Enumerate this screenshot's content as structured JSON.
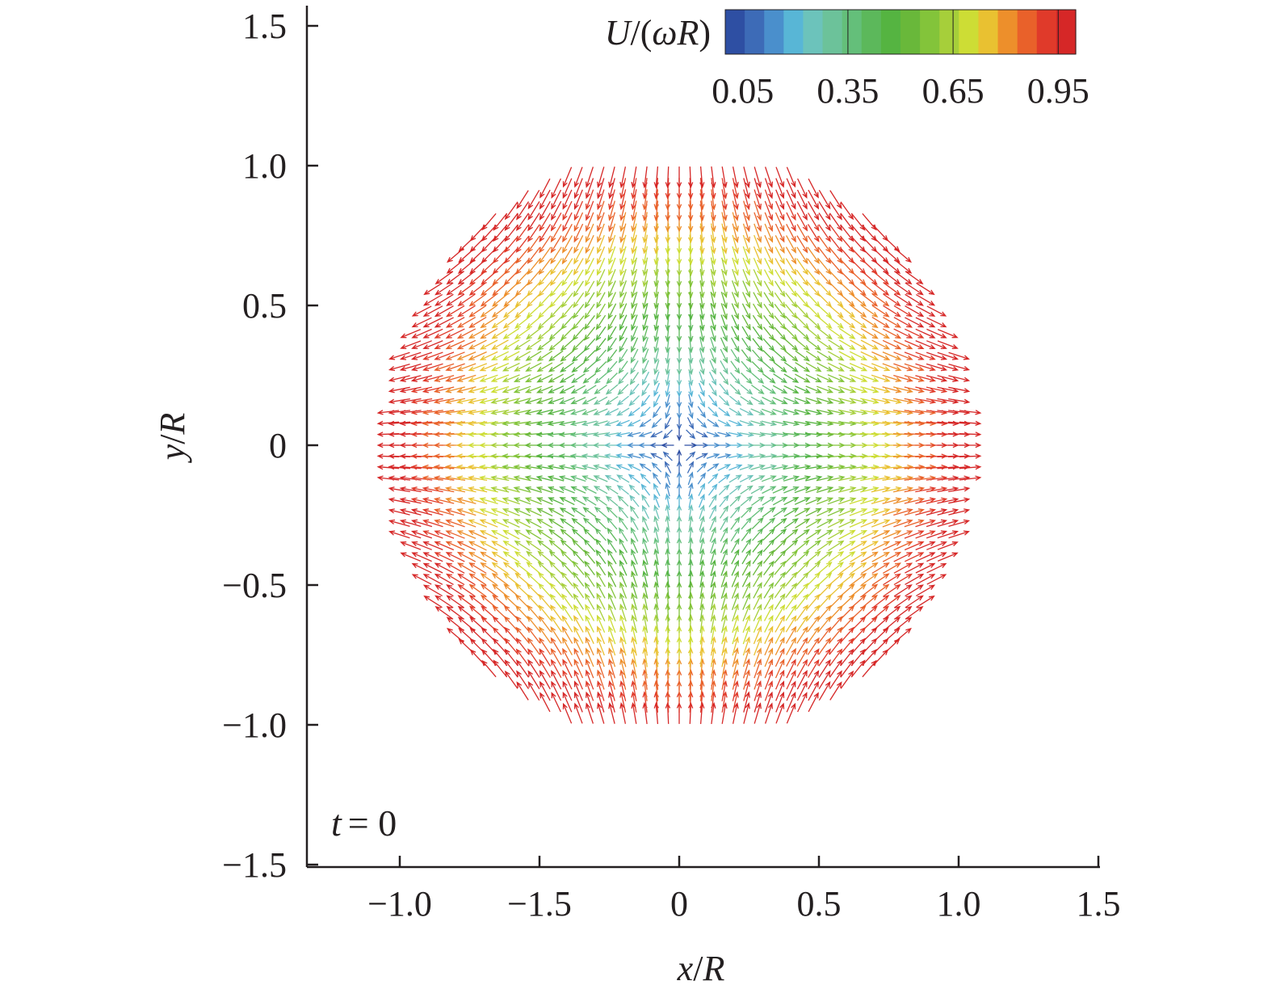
{
  "chart_data": {
    "type": "vector-field",
    "xlabel_var": "x",
    "xlabel_unit": "R",
    "ylabel_var": "y",
    "ylabel_unit": "R",
    "x_ticks": [
      "−1.0",
      "−1.5",
      "0",
      "0.5",
      "1.0",
      "1.5"
    ],
    "y_ticks": [
      "1.5",
      "1.0",
      "0.5",
      "0",
      "−0.5",
      "−1.0",
      "−1.5"
    ],
    "xlim": [
      -1.5,
      1.5
    ],
    "ylim": [
      -1.5,
      1.5
    ],
    "annotation_var": "t",
    "annotation_value": "= 0",
    "colorbar": {
      "label_var1": "U",
      "label_mid": "/(",
      "label_omega": "ω",
      "label_var2": "R",
      "label_close": ")",
      "tick_labels": [
        "0.05",
        "0.35",
        "0.65",
        "0.95"
      ],
      "tick_values": [
        0.05,
        0.35,
        0.65,
        0.95
      ],
      "range": [
        0.0,
        1.0
      ],
      "colors": [
        "#2e4fa3",
        "#3d6bb7",
        "#4a8fcc",
        "#58b6d6",
        "#6cc3bb",
        "#6cc29a",
        "#64bf7a",
        "#5cb85b",
        "#55b441",
        "#69b83a",
        "#83c43a",
        "#a6cf3a",
        "#cddd35",
        "#e9c131",
        "#ed8f2b",
        "#e9612a",
        "#e03a2a",
        "#d62727"
      ]
    },
    "field": {
      "description_free": true,
      "form": "u = x, v = -y (hyperbolic strain)",
      "region": "octagonal",
      "grid_spacing": 0.04,
      "speed_max": 1.0
    }
  }
}
